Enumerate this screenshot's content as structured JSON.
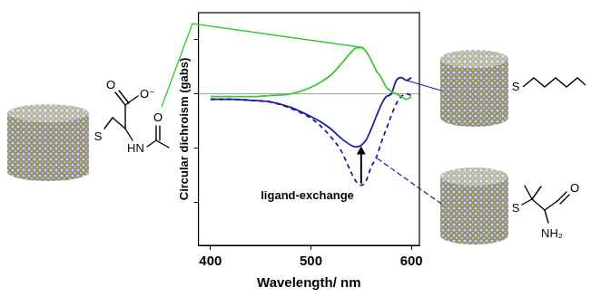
{
  "chart_data": {
    "type": "line",
    "x_label": "Wavelength/ nm",
    "y_label": "Circular dichroism (gabs)",
    "x": [
      400,
      420,
      440,
      460,
      480,
      500,
      510,
      520,
      530,
      540,
      545,
      550,
      555,
      560,
      565,
      570,
      575,
      580,
      585,
      590,
      595,
      600
    ],
    "xlim": [
      388,
      608
    ],
    "xticks": [
      400,
      500,
      600
    ],
    "ylim": [
      -2.8,
      1.5
    ],
    "yticks": [
      -2,
      -1,
      0,
      1
    ],
    "tick_labels": "x",
    "grid": false,
    "annotations": [
      "ligand-exchange"
    ],
    "series": [
      {
        "color": "#33cc33",
        "line_style": "solid",
        "values": [
          -0.05,
          -0.05,
          -0.05,
          -0.03,
          0,
          0.12,
          0.22,
          0.35,
          0.55,
          0.77,
          0.85,
          0.86,
          0.78,
          0.62,
          0.43,
          0.3,
          0.12,
          0.05,
          0,
          -0.05,
          -0.1,
          -0.05
        ]
      },
      {
        "color": "#1c1ca0",
        "line_style": "solid",
        "values": [
          -0.1,
          -0.1,
          -0.12,
          -0.15,
          -0.25,
          -0.42,
          -0.52,
          -0.65,
          -0.82,
          -0.95,
          -0.98,
          -0.95,
          -0.85,
          -0.65,
          -0.42,
          -0.2,
          -0.05,
          0,
          0.25,
          0.3,
          0.25,
          0.3
        ]
      },
      {
        "color": "#1c1ca0",
        "line_style": "dashed",
        "values": [
          -0.1,
          -0.1,
          -0.12,
          -0.15,
          -0.27,
          -0.45,
          -0.6,
          -0.8,
          -1.05,
          -1.45,
          -1.62,
          -1.69,
          -1.6,
          -1.35,
          -1.18,
          -0.9,
          -0.65,
          -0.4,
          -0.18,
          -0.05,
          0,
          -0.03
        ]
      }
    ]
  },
  "ligands": [
    {
      "atoms": [
        "O",
        "O⁻",
        "S",
        "HN",
        "O"
      ]
    },
    {
      "atoms": [
        "S"
      ]
    },
    {
      "atoms": [
        "S",
        "O",
        "NH₂"
      ]
    }
  ]
}
